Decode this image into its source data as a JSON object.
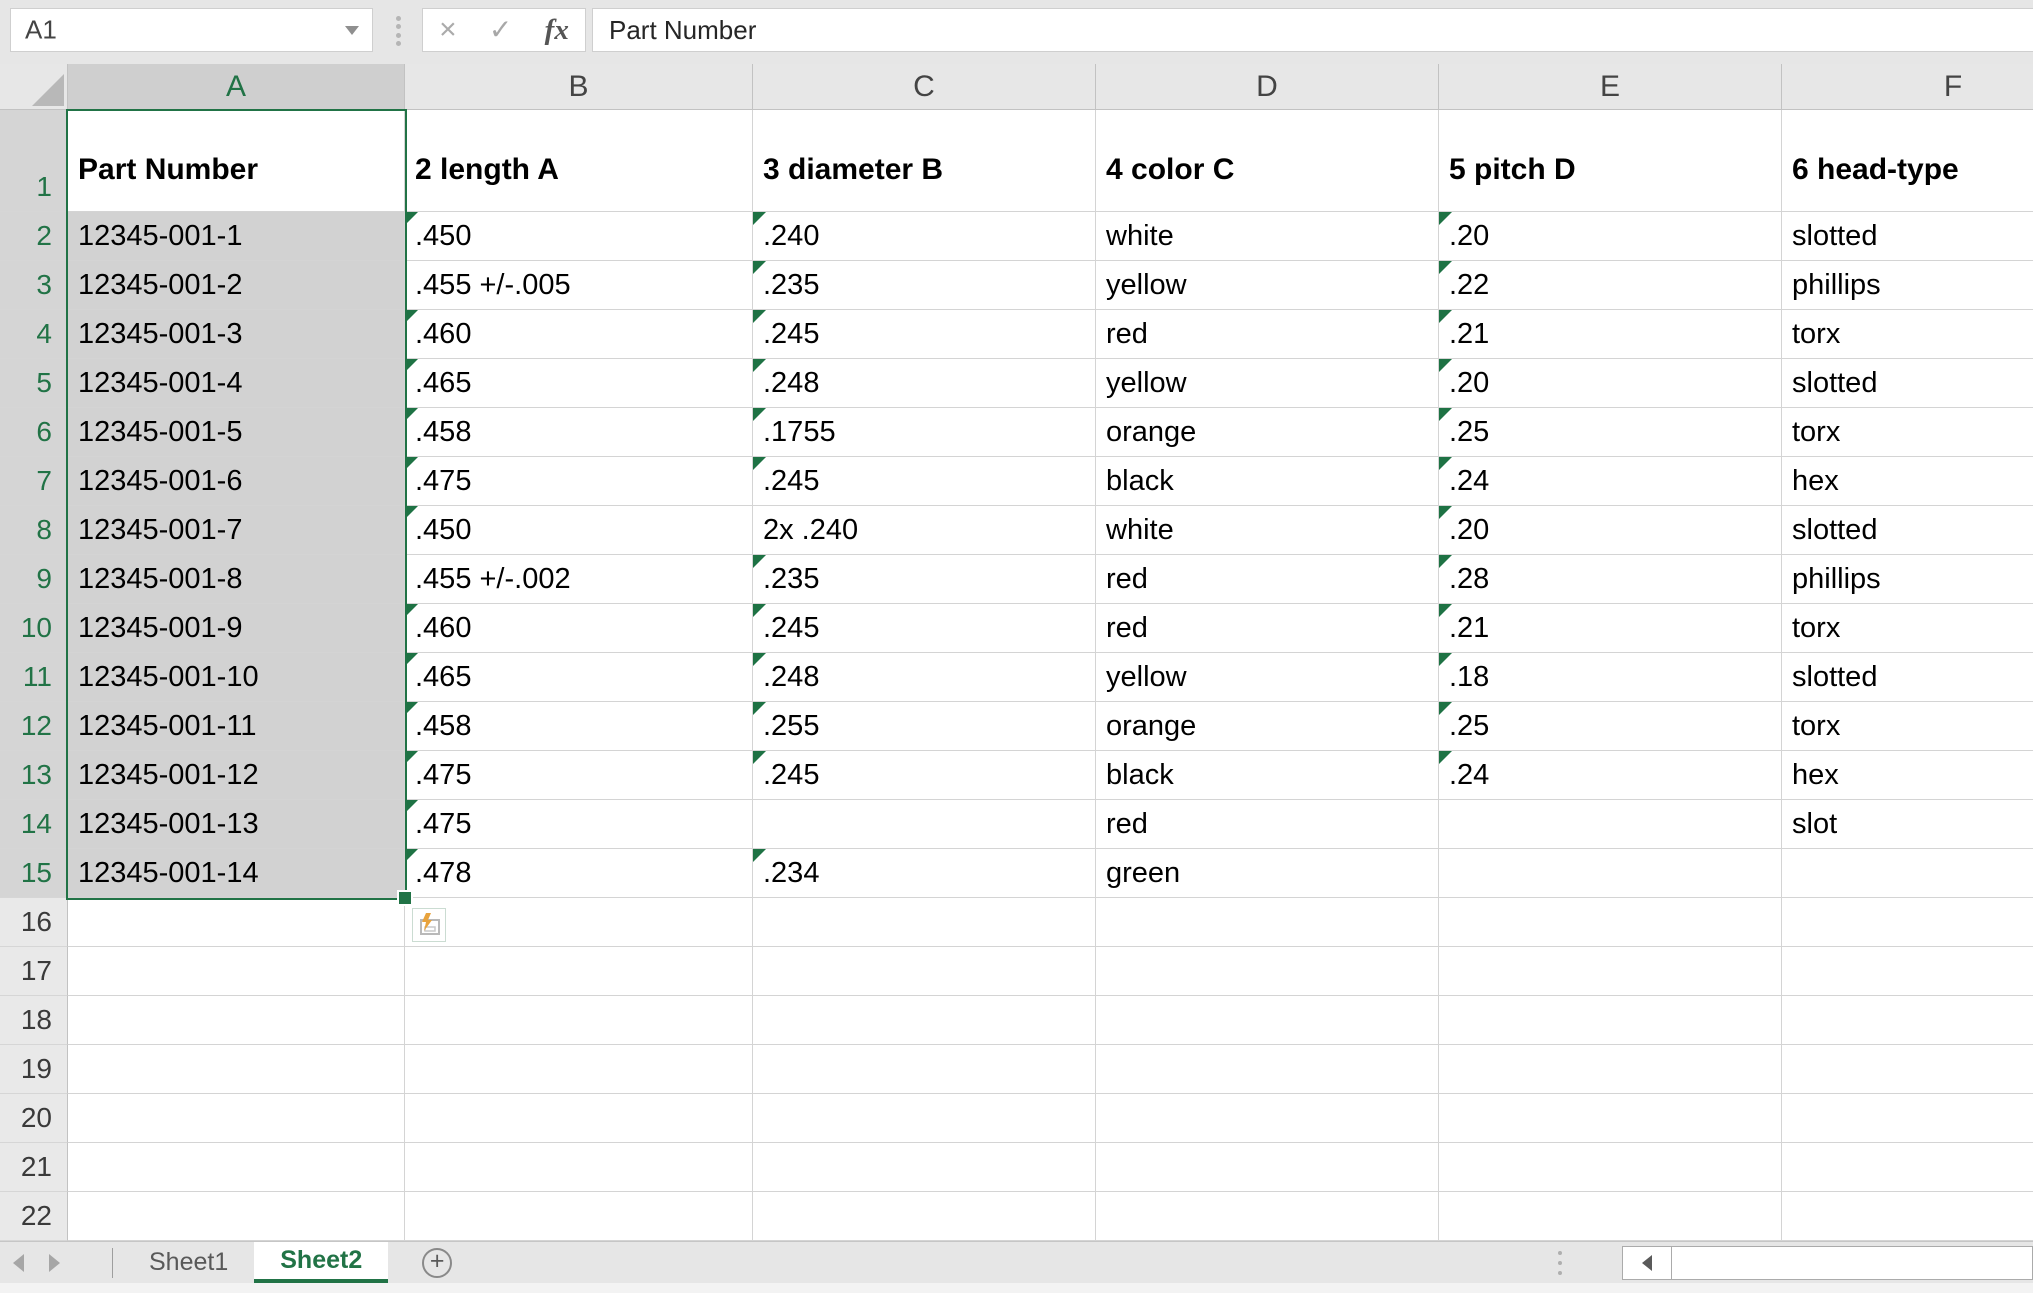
{
  "colors": {
    "accent_green": "#217346",
    "selection_fill": "#D2D2D2",
    "error_triangle_green": "#1E7244",
    "header_gray": "#E7E7E7"
  },
  "formula_bar": {
    "name_box_value": "A1",
    "formula_value": "Part Number",
    "cancel_icon": "×",
    "enter_icon": "✓",
    "fx_icon": "fx"
  },
  "grid": {
    "column_letters": [
      "A",
      "B",
      "C",
      "D",
      "E",
      "F"
    ],
    "selected_column": "A",
    "selected_row_count": 15,
    "active_cell": "A1",
    "rows": [
      {
        "n": 1,
        "cells": [
          "Part Number",
          "2 length A",
          "3 diameter B",
          "4 color C",
          "5 pitch D",
          "6 head-type"
        ],
        "tri": []
      },
      {
        "n": 2,
        "cells": [
          "12345-001-1",
          ".450",
          ".240",
          "white",
          ".20",
          "slotted"
        ],
        "tri": [
          "B",
          "C",
          "E"
        ]
      },
      {
        "n": 3,
        "cells": [
          "12345-001-2",
          ".455 +/-.005",
          ".235",
          "yellow",
          ".22",
          "phillips"
        ],
        "tri": [
          "C",
          "E"
        ]
      },
      {
        "n": 4,
        "cells": [
          "12345-001-3",
          ".460",
          ".245",
          "red",
          ".21",
          "torx"
        ],
        "tri": [
          "B",
          "C",
          "E"
        ]
      },
      {
        "n": 5,
        "cells": [
          "12345-001-4",
          ".465",
          ".248",
          "yellow",
          ".20",
          "slotted"
        ],
        "tri": [
          "B",
          "C",
          "E"
        ]
      },
      {
        "n": 6,
        "cells": [
          "12345-001-5",
          ".458",
          ".1755",
          "orange",
          ".25",
          "torx"
        ],
        "tri": [
          "B",
          "C",
          "E"
        ]
      },
      {
        "n": 7,
        "cells": [
          "12345-001-6",
          ".475",
          ".245",
          "black",
          ".24",
          "hex"
        ],
        "tri": [
          "B",
          "C",
          "E"
        ]
      },
      {
        "n": 8,
        "cells": [
          "12345-001-7",
          ".450",
          "2x .240",
          "white",
          ".20",
          "slotted"
        ],
        "tri": [
          "B",
          "E"
        ]
      },
      {
        "n": 9,
        "cells": [
          "12345-001-8",
          ".455 +/-.002",
          ".235",
          "red",
          ".28",
          "phillips"
        ],
        "tri": [
          "C",
          "E"
        ]
      },
      {
        "n": 10,
        "cells": [
          "12345-001-9",
          ".460",
          ".245",
          "red",
          ".21",
          "torx"
        ],
        "tri": [
          "B",
          "C",
          "E"
        ]
      },
      {
        "n": 11,
        "cells": [
          "12345-001-10",
          ".465",
          ".248",
          "yellow",
          ".18",
          "slotted"
        ],
        "tri": [
          "B",
          "C",
          "E"
        ]
      },
      {
        "n": 12,
        "cells": [
          "12345-001-11",
          ".458",
          ".255",
          "orange",
          ".25",
          "torx"
        ],
        "tri": [
          "B",
          "C",
          "E"
        ]
      },
      {
        "n": 13,
        "cells": [
          "12345-001-12",
          ".475",
          ".245",
          "black",
          ".24",
          "hex"
        ],
        "tri": [
          "B",
          "C",
          "E"
        ]
      },
      {
        "n": 14,
        "cells": [
          "12345-001-13",
          ".475",
          "",
          "red",
          "",
          "slot"
        ],
        "tri": [
          "B"
        ]
      },
      {
        "n": 15,
        "cells": [
          "12345-001-14",
          ".478",
          ".234",
          "green",
          "",
          ""
        ],
        "tri": [
          "B",
          "C"
        ]
      },
      {
        "n": 16,
        "cells": [
          "",
          "",
          "",
          "",
          "",
          ""
        ],
        "tri": []
      },
      {
        "n": 17,
        "cells": [
          "",
          "",
          "",
          "",
          "",
          ""
        ],
        "tri": []
      },
      {
        "n": 18,
        "cells": [
          "",
          "",
          "",
          "",
          "",
          ""
        ],
        "tri": []
      },
      {
        "n": 19,
        "cells": [
          "",
          "",
          "",
          "",
          "",
          ""
        ],
        "tri": []
      },
      {
        "n": 20,
        "cells": [
          "",
          "",
          "",
          "",
          "",
          ""
        ],
        "tri": []
      },
      {
        "n": 21,
        "cells": [
          "",
          "",
          "",
          "",
          "",
          ""
        ],
        "tri": []
      },
      {
        "n": 22,
        "cells": [
          "",
          "",
          "",
          "",
          "",
          ""
        ],
        "tri": []
      }
    ]
  },
  "sheet_tabs": {
    "tabs": [
      {
        "label": "Sheet1",
        "active": false
      },
      {
        "label": "Sheet2",
        "active": true
      }
    ],
    "add_sheet_icon": "+"
  },
  "icons": {
    "nav_left": "css-triangle-left",
    "nav_right": "css-triangle-right",
    "name_box_dropdown": "css-triangle-down",
    "select_all_corner": "css-triangle",
    "error_indicator": "green-corner-triangle",
    "quick_analysis": "lightning-over-panel",
    "scrollbar_left_arrow": "css-triangle-left"
  }
}
